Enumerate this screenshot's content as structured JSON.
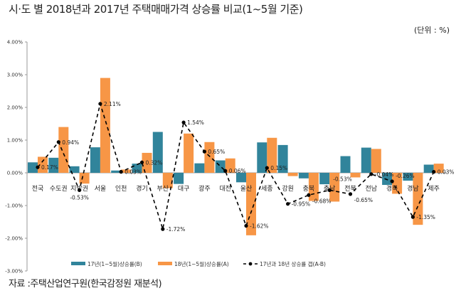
{
  "chart_data": {
    "type": "bar",
    "title": "시·도 별 2018년과 2017년 주택매매가격 상승률 비교(1~5월 기준)",
    "unit_label": "(단위 : %)",
    "source": "자료 :주택산업연구원(한국감정원  재분석)",
    "categories": [
      "전국",
      "수도권",
      "지방권",
      "서울",
      "인천",
      "경기",
      "부산",
      "대구",
      "광주",
      "대전",
      "울산",
      "세종",
      "강원",
      "충북",
      "충남",
      "전북",
      "전남",
      "경북",
      "경남",
      "제주"
    ],
    "series": [
      {
        "name": "17년(1~5월)상승률(B)",
        "type": "bar",
        "color": "#31849b",
        "values": [
          0.32,
          0.46,
          0.2,
          0.78,
          0.07,
          0.28,
          1.25,
          -0.34,
          0.29,
          0.38,
          -0.29,
          0.93,
          0.85,
          -0.17,
          -0.35,
          0.51,
          0.77,
          -0.37,
          -0.24,
          0.25
        ]
      },
      {
        "name": "18년(1~5월)상승률(A)",
        "type": "bar",
        "color": "#f79646",
        "values": [
          0.49,
          1.4,
          -0.33,
          2.9,
          0.1,
          0.61,
          -0.47,
          1.2,
          0.94,
          0.44,
          -1.91,
          1.07,
          -0.1,
          -0.86,
          -0.88,
          -0.14,
          0.73,
          -0.64,
          -1.59,
          0.28
        ]
      },
      {
        "name": "17년과 18년 상승률 갭(A-B)",
        "type": "line",
        "color": "#000000",
        "values": [
          0.17,
          0.94,
          -0.53,
          2.11,
          0.03,
          0.32,
          -1.72,
          1.54,
          0.65,
          0.06,
          -1.62,
          0.15,
          -0.95,
          -0.68,
          -0.53,
          -0.65,
          -0.04,
          -0.26,
          -1.35,
          0.03
        ],
        "labels": [
          "0.17%",
          "0.94%",
          "-0.53%",
          "2.11%",
          "0.03%",
          "0.32%",
          "-1.72%",
          "1.54%",
          "0.65%",
          "0.06%",
          "-1.62%",
          "0.15%",
          "-0.95%",
          "-0.68%",
          "-0.53%",
          "-0.65%",
          "-0.04%",
          "-0.26%",
          "-1.35%",
          "0.03%"
        ]
      }
    ],
    "ylim": [
      -3,
      4
    ],
    "yticks": [
      4,
      3,
      2,
      1,
      0,
      -1,
      -2,
      -3
    ],
    "ytick_labels": [
      "4.00%",
      "3.00%",
      "2.00%",
      "1.00%",
      "0.00%",
      "-1.00%",
      "-2.00%",
      "-3.00%"
    ],
    "xlabel": "",
    "ylabel": "",
    "grid": false,
    "legend_position": "bottom"
  }
}
